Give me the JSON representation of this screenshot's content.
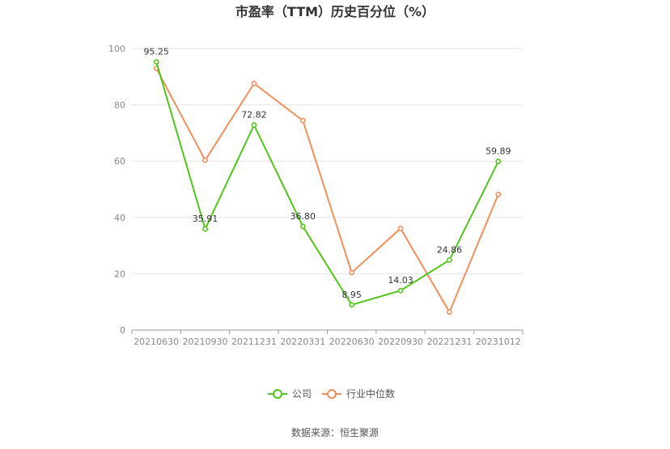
{
  "chart_data": {
    "type": "line",
    "title": "市盈率（TTM）历史百分位（%）",
    "categories": [
      "20210630",
      "20210930",
      "20211231",
      "20220331",
      "20220630",
      "20220930",
      "20221231",
      "20231012"
    ],
    "series": [
      {
        "name": "公司",
        "color": "#52c41a",
        "values": [
          95.25,
          35.91,
          72.82,
          36.8,
          8.95,
          14.03,
          24.86,
          59.89
        ],
        "labels": [
          "95.25",
          "35.91",
          "72.82",
          "36.80",
          "8.95",
          "14.03",
          "24.86",
          "59.89"
        ]
      },
      {
        "name": "行业中位数",
        "color": "#f28e5c",
        "values": [
          93.0,
          60.3,
          87.6,
          74.4,
          20.4,
          36.1,
          6.4,
          48.2
        ]
      }
    ],
    "ylim": [
      0,
      100
    ],
    "yticks": [
      0,
      20,
      40,
      60,
      80,
      100
    ],
    "grid": true,
    "legend": "bottom-center"
  },
  "source": "数据来源：恒生聚源"
}
